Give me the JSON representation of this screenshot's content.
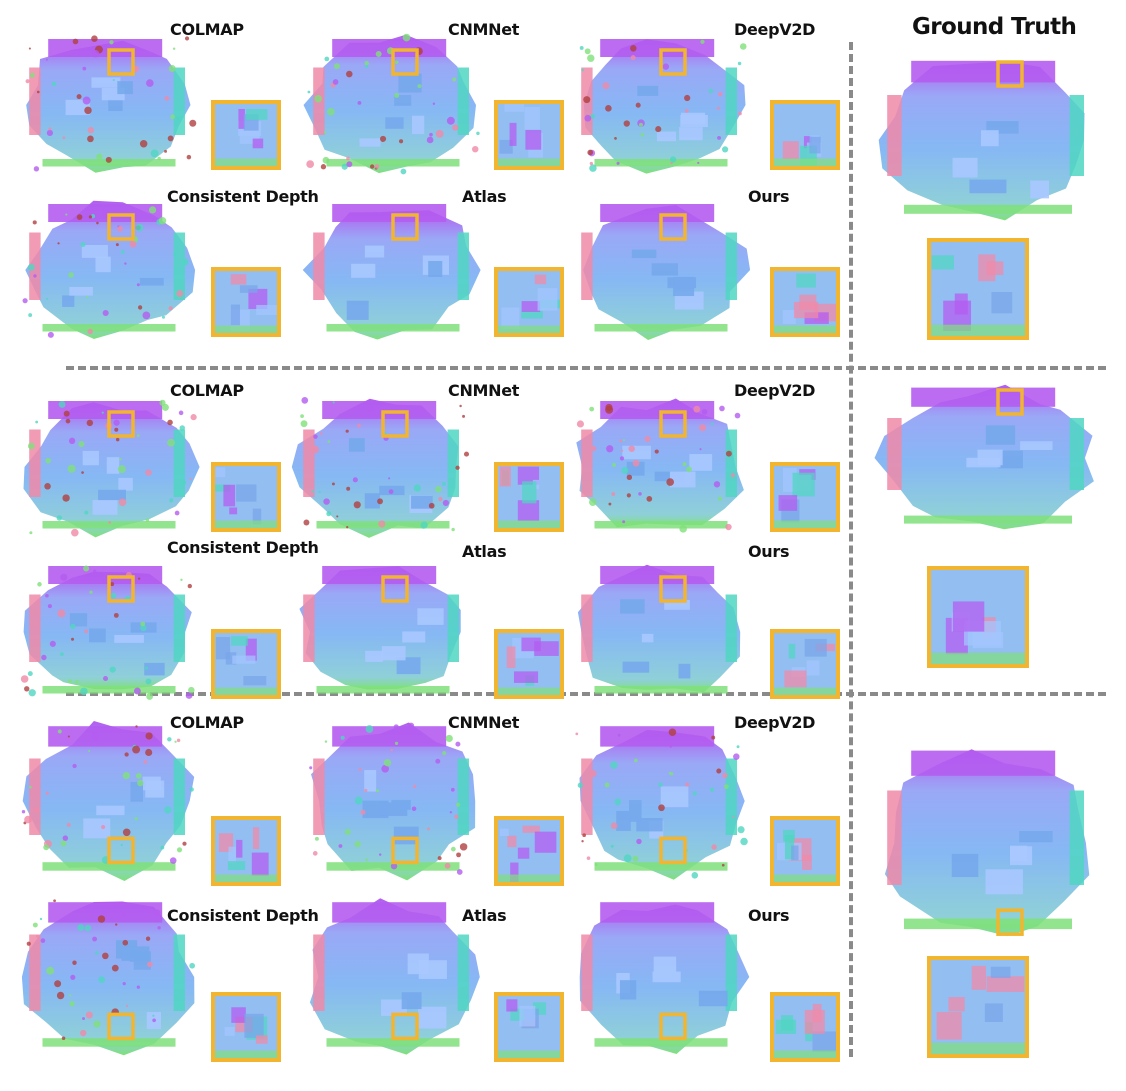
{
  "ground_truth_title": "Ground Truth",
  "colors": {
    "inset_border": "#f1b530",
    "divider": "#8a8a8a",
    "normal_blue": "#86b8f4",
    "normal_purple": "#b45cf0",
    "normal_green": "#7fe07a",
    "normal_pink": "#f08aa8",
    "normal_teal": "#50d6c2"
  },
  "groups": [
    {
      "methods": [
        {
          "label": "COLMAP"
        },
        {
          "label": "CNMNet"
        },
        {
          "label": "DeepV2D"
        },
        {
          "label": "Consistent Depth"
        },
        {
          "label": "Atlas"
        },
        {
          "label": "Ours"
        }
      ]
    },
    {
      "methods": [
        {
          "label": "COLMAP"
        },
        {
          "label": "CNMNet"
        },
        {
          "label": "DeepV2D"
        },
        {
          "label": "Consistent Depth"
        },
        {
          "label": "Atlas"
        },
        {
          "label": "Ours"
        }
      ]
    },
    {
      "methods": [
        {
          "label": "COLMAP"
        },
        {
          "label": "CNMNet"
        },
        {
          "label": "DeepV2D"
        },
        {
          "label": "Consistent Depth"
        },
        {
          "label": "Atlas"
        },
        {
          "label": "Ours"
        }
      ]
    }
  ]
}
